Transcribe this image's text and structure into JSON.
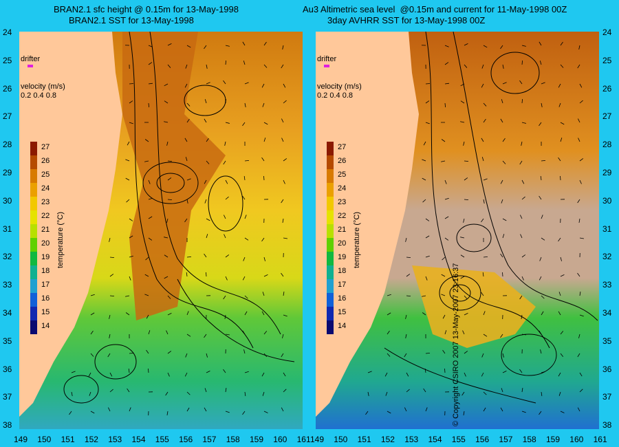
{
  "titles": {
    "left_line1": "BRAN2.1 sfc height @ 0.15m for 13-May-1998",
    "left_line2": "BRAN2.1 SST for 13-May-1998",
    "right_line1": "Au3 Altimetric sea level  @0.15m and current for 11-May-1998 00Z",
    "right_line2": "3day AVHRR SST for 13-May-1998 00Z"
  },
  "lat_labels": [
    "24",
    "25",
    "26",
    "27",
    "28",
    "29",
    "30",
    "31",
    "32",
    "33",
    "34",
    "35",
    "36",
    "37",
    "38"
  ],
  "lon_labels": [
    "149",
    "150",
    "151",
    "152",
    "153",
    "154",
    "155",
    "156",
    "157",
    "158",
    "159",
    "160",
    "161"
  ],
  "overlay": {
    "drifter_label": "drifter",
    "velocity_label": "velocity (m/s)",
    "velocity_scale": "0.2 0.4 0.8"
  },
  "legend": {
    "title": "temperature (°C)",
    "ticks": [
      "27",
      "26",
      "25",
      "24",
      "23",
      "22",
      "21",
      "20",
      "19",
      "18",
      "17",
      "16",
      "15",
      "14"
    ],
    "colors": [
      "#8b1a00",
      "#b54a00",
      "#d87a00",
      "#eba000",
      "#f2c800",
      "#e6e200",
      "#b8e000",
      "#60d000",
      "#10b840",
      "#10b090",
      "#20a0d0",
      "#1060d8",
      "#1028b0",
      "#0a0a70"
    ]
  },
  "copyright": "© Copyright CSIRO 2007  13-May-2007 23:16:37",
  "colors": {
    "background": "#1fc8f0",
    "land": "#ffc89a",
    "cloud": "#c8a890"
  }
}
